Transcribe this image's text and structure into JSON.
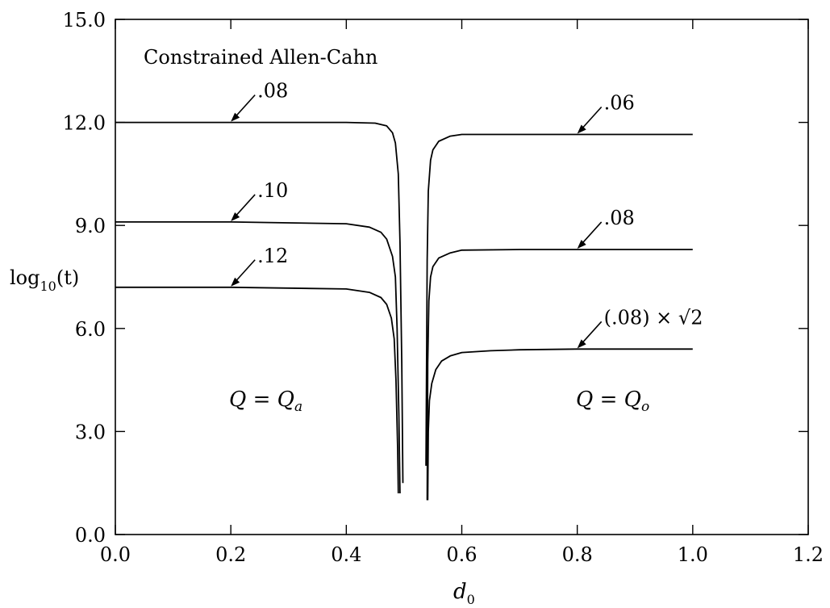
{
  "chart_data": {
    "type": "line",
    "title": "",
    "annotation_title": "Constrained Allen-Cahn",
    "xlabel": "d",
    "xlabel_sub": "0",
    "ylabel_main": "log",
    "ylabel_sub": "10",
    "ylabel_arg": "(t)",
    "xlim": [
      0.0,
      1.2
    ],
    "ylim": [
      0.0,
      15.0
    ],
    "xticks": [
      "0.0",
      "0.2",
      "0.4",
      "0.6",
      "0.8",
      "1.0",
      "1.2"
    ],
    "yticks": [
      "0.0",
      "3.0",
      "6.0",
      "9.0",
      "12.0",
      "15.0"
    ],
    "grid": false,
    "series": [
      {
        "label": ".08",
        "side": "left",
        "x": [
          0.0,
          0.2,
          0.4,
          0.45,
          0.47,
          0.48,
          0.485,
          0.49,
          0.493,
          0.496,
          0.498
        ],
        "y": [
          12.0,
          12.0,
          12.0,
          11.98,
          11.9,
          11.7,
          11.4,
          10.5,
          8.5,
          5.0,
          1.5
        ]
      },
      {
        "label": ".10",
        "side": "left",
        "x": [
          0.0,
          0.2,
          0.4,
          0.44,
          0.46,
          0.47,
          0.48,
          0.485,
          0.488,
          0.491,
          0.493
        ],
        "y": [
          9.1,
          9.1,
          9.05,
          8.95,
          8.8,
          8.6,
          8.1,
          7.5,
          6.0,
          3.5,
          1.2
        ]
      },
      {
        "label": ".12",
        "side": "left",
        "x": [
          0.0,
          0.2,
          0.4,
          0.44,
          0.46,
          0.47,
          0.478,
          0.483,
          0.486,
          0.489,
          0.49
        ],
        "y": [
          7.2,
          7.2,
          7.15,
          7.05,
          6.9,
          6.7,
          6.3,
          5.7,
          4.5,
          2.5,
          1.2
        ]
      },
      {
        "label": ".06",
        "side": "right",
        "x": [
          0.538,
          0.54,
          0.542,
          0.546,
          0.55,
          0.56,
          0.58,
          0.6,
          0.7,
          0.8,
          1.0
        ],
        "y": [
          2.0,
          8.0,
          10.0,
          10.9,
          11.2,
          11.45,
          11.6,
          11.65,
          11.65,
          11.65,
          11.65
        ]
      },
      {
        "label": ".08",
        "side": "right",
        "x": [
          0.54,
          0.541,
          0.543,
          0.546,
          0.55,
          0.56,
          0.58,
          0.6,
          0.7,
          0.8,
          1.0
        ],
        "y": [
          1.0,
          5.0,
          6.8,
          7.5,
          7.8,
          8.05,
          8.2,
          8.28,
          8.3,
          8.3,
          8.3
        ]
      },
      {
        "label": "(.08) × √2",
        "side": "right",
        "x": [
          0.541,
          0.542,
          0.544,
          0.548,
          0.555,
          0.565,
          0.58,
          0.6,
          0.65,
          0.7,
          0.8,
          1.0
        ],
        "y": [
          1.0,
          3.0,
          3.9,
          4.4,
          4.8,
          5.05,
          5.2,
          5.3,
          5.35,
          5.38,
          5.4,
          5.4
        ]
      }
    ],
    "region_labels": [
      {
        "q": "Q",
        "eq": " = ",
        "q2": "Q",
        "sub": "a"
      },
      {
        "q": "Q",
        "eq": " = ",
        "q2": "Q",
        "sub": "o"
      }
    ],
    "colors": {
      "line": "#000000",
      "background": "#ffffff"
    }
  }
}
